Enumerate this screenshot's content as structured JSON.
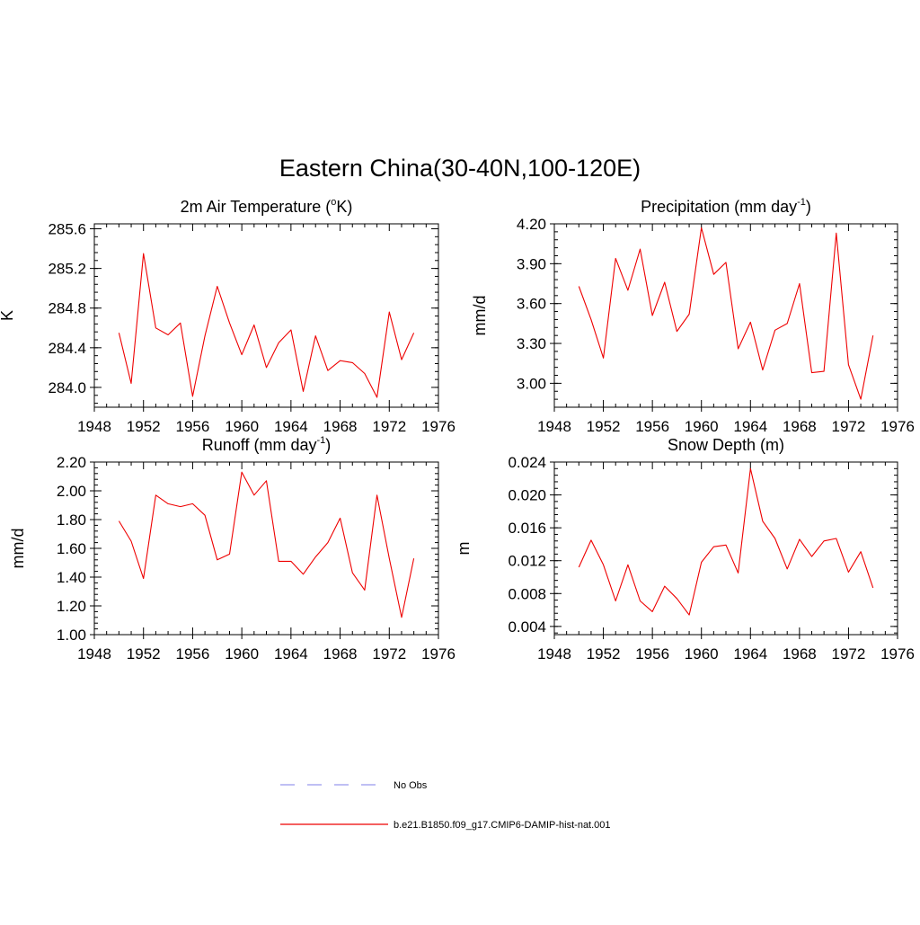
{
  "figure": {
    "title": "Eastern China(30-40N,100-120E)"
  },
  "legend": {
    "entries": [
      {
        "label": "No Obs",
        "color": "#9999ee",
        "style": "dashed"
      },
      {
        "label": "b.e21.B1850.f09_g17.CMIP6-DAMIP-hist-nat.001",
        "color": "#ee0000",
        "style": "solid"
      }
    ]
  },
  "chart_data": [
    {
      "type": "line",
      "title": "2m Air Temperature (",
      "title_sup": "o",
      "title_suffix": "K)",
      "ylabel": "K",
      "xlim": [
        1948,
        1976
      ],
      "ylim": [
        283.8,
        285.65
      ],
      "xticks": [
        1948,
        1952,
        1956,
        1960,
        1964,
        1968,
        1972,
        1976
      ],
      "yticks": [
        284.0,
        284.4,
        284.8,
        285.2,
        285.6
      ],
      "ytick_labels": [
        "284.0",
        "284.4",
        "284.8",
        "285.2",
        "285.6"
      ],
      "grid": false,
      "series": [
        {
          "color": "#ee0000",
          "x": [
            1950,
            1951,
            1952,
            1953,
            1954,
            1955,
            1956,
            1957,
            1958,
            1959,
            1960,
            1961,
            1962,
            1963,
            1964,
            1965,
            1966,
            1967,
            1968,
            1969,
            1970,
            1971,
            1972,
            1973,
            1974
          ],
          "y": [
            284.55,
            284.04,
            285.35,
            284.6,
            284.53,
            284.65,
            283.91,
            284.52,
            285.02,
            284.65,
            284.33,
            284.63,
            284.2,
            284.45,
            284.58,
            283.96,
            284.52,
            284.17,
            284.27,
            284.25,
            284.14,
            283.9,
            284.76,
            284.28,
            284.55
          ]
        }
      ]
    },
    {
      "type": "line",
      "title": "Precipitation (mm day",
      "title_sup": "-1",
      "title_suffix": ")",
      "ylabel": "mm/d",
      "xlim": [
        1948,
        1976
      ],
      "ylim": [
        2.82,
        4.2
      ],
      "xticks": [
        1948,
        1952,
        1956,
        1960,
        1964,
        1968,
        1972,
        1976
      ],
      "yticks": [
        3.0,
        3.3,
        3.6,
        3.9,
        4.2
      ],
      "ytick_labels": [
        "3.00",
        "3.30",
        "3.60",
        "3.90",
        "4.20"
      ],
      "grid": false,
      "series": [
        {
          "color": "#ee0000",
          "x": [
            1950,
            1951,
            1952,
            1953,
            1954,
            1955,
            1956,
            1957,
            1958,
            1959,
            1960,
            1961,
            1962,
            1963,
            1964,
            1965,
            1966,
            1967,
            1968,
            1969,
            1970,
            1971,
            1972,
            1973,
            1974
          ],
          "y": [
            3.73,
            3.48,
            3.19,
            3.94,
            3.7,
            4.01,
            3.51,
            3.76,
            3.39,
            3.52,
            4.17,
            3.82,
            3.91,
            3.26,
            3.46,
            3.1,
            3.4,
            3.45,
            3.75,
            3.08,
            3.09,
            4.13,
            3.14,
            2.88,
            3.36
          ]
        }
      ]
    },
    {
      "type": "line",
      "title": "Runoff (mm day",
      "title_sup": "-1",
      "title_suffix": ")",
      "ylabel": "mm/d",
      "xlim": [
        1948,
        1976
      ],
      "ylim": [
        1.0,
        2.2
      ],
      "xticks": [
        1948,
        1952,
        1956,
        1960,
        1964,
        1968,
        1972,
        1976
      ],
      "yticks": [
        1.0,
        1.2,
        1.4,
        1.6,
        1.8,
        2.0,
        2.2
      ],
      "ytick_labels": [
        "1.00",
        "1.20",
        "1.40",
        "1.60",
        "1.80",
        "2.00",
        "2.20"
      ],
      "grid": false,
      "series": [
        {
          "color": "#ee0000",
          "x": [
            1950,
            1951,
            1952,
            1953,
            1954,
            1955,
            1956,
            1957,
            1958,
            1959,
            1960,
            1961,
            1962,
            1963,
            1964,
            1965,
            1966,
            1967,
            1968,
            1969,
            1970,
            1971,
            1972,
            1973,
            1974
          ],
          "y": [
            1.79,
            1.65,
            1.39,
            1.97,
            1.91,
            1.89,
            1.91,
            1.83,
            1.52,
            1.56,
            2.13,
            1.97,
            2.07,
            1.51,
            1.51,
            1.42,
            1.54,
            1.64,
            1.81,
            1.43,
            1.31,
            1.97,
            1.53,
            1.12,
            1.53
          ]
        }
      ]
    },
    {
      "type": "line",
      "title": "Snow Depth (m)",
      "title_sup": "",
      "title_suffix": "",
      "ylabel": "m",
      "xlim": [
        1948,
        1976
      ],
      "ylim": [
        0.003,
        0.024
      ],
      "xticks": [
        1948,
        1952,
        1956,
        1960,
        1964,
        1968,
        1972,
        1976
      ],
      "yticks": [
        0.004,
        0.008,
        0.012,
        0.016,
        0.02,
        0.024
      ],
      "ytick_labels": [
        "0.004",
        "0.008",
        "0.012",
        "0.016",
        "0.020",
        "0.024"
      ],
      "grid": false,
      "series": [
        {
          "color": "#ee0000",
          "x": [
            1950,
            1951,
            1952,
            1953,
            1954,
            1955,
            1956,
            1957,
            1958,
            1959,
            1960,
            1961,
            1962,
            1963,
            1964,
            1965,
            1966,
            1967,
            1968,
            1969,
            1970,
            1971,
            1972,
            1973,
            1974
          ],
          "y": [
            0.0112,
            0.0145,
            0.0115,
            0.0071,
            0.0115,
            0.0071,
            0.0058,
            0.0089,
            0.0074,
            0.0054,
            0.0118,
            0.0137,
            0.0139,
            0.0105,
            0.0232,
            0.0168,
            0.0147,
            0.011,
            0.0146,
            0.0125,
            0.0144,
            0.0147,
            0.0106,
            0.0131,
            0.0087
          ]
        }
      ]
    }
  ]
}
